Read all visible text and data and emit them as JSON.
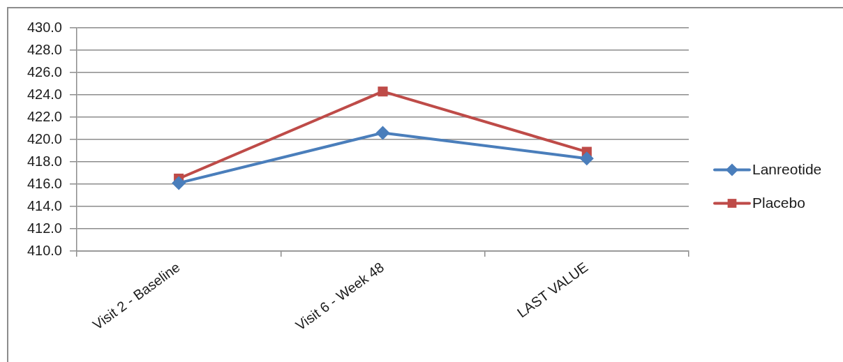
{
  "chart_data": {
    "type": "line",
    "categories": [
      "Visit 2 - Baseline",
      "Visit 6 - Week 48",
      "LAST VALUE"
    ],
    "series": [
      {
        "name": "Lanreotide",
        "color": "#4a7ebb",
        "values": [
          416.1,
          420.6,
          418.3
        ],
        "marker": "diamond"
      },
      {
        "name": "Placebo",
        "color": "#be4b48",
        "values": [
          416.5,
          424.3,
          418.9
        ],
        "marker": "square"
      }
    ],
    "ylim": [
      410,
      430
    ],
    "yticks": [
      {
        "value": 410,
        "label": "410.0"
      },
      {
        "value": 412,
        "label": "412.0"
      },
      {
        "value": 414,
        "label": "414.0"
      },
      {
        "value": 416,
        "label": "416.0"
      },
      {
        "value": 418,
        "label": "418.0"
      },
      {
        "value": 420,
        "label": "420.0"
      },
      {
        "value": 422,
        "label": "422.0"
      },
      {
        "value": 424,
        "label": "424.0"
      },
      {
        "value": 426,
        "label": "426.0"
      },
      {
        "value": 428,
        "label": "428.0"
      },
      {
        "value": 430,
        "label": "430.0"
      }
    ],
    "grid": "y",
    "legend": "right",
    "line_style": "solid"
  }
}
